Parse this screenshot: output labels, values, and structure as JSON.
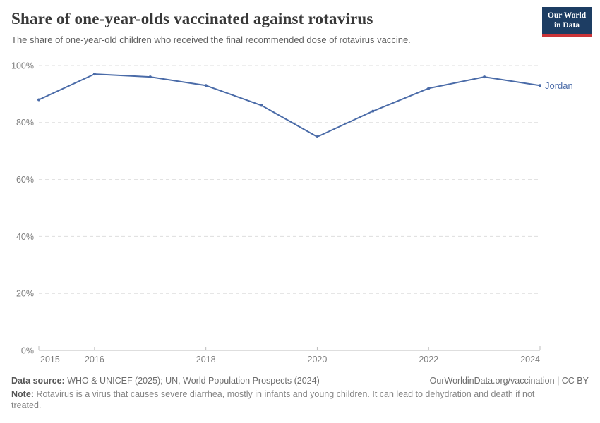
{
  "header": {
    "title": "Share of one-year-olds vaccinated against rotavirus",
    "subtitle": "The share of one-year-old children who received the final recommended dose of rotavirus vaccine.",
    "logo": {
      "line1": "Our World",
      "line2": "in Data",
      "bg_color": "#1d3d63",
      "accent_color": "#cb3438"
    }
  },
  "chart_data": {
    "type": "line",
    "title": "Share of one-year-olds vaccinated against rotavirus",
    "x": [
      2015,
      2016,
      2017,
      2018,
      2019,
      2020,
      2021,
      2022,
      2023,
      2024
    ],
    "series": [
      {
        "name": "Jordan",
        "color": "#4a6ba8",
        "values": [
          88,
          97,
          96,
          93,
          86,
          75,
          84,
          92,
          96,
          93
        ]
      }
    ],
    "xlabel": "",
    "ylabel": "",
    "ylim": [
      0,
      100
    ],
    "yticks": [
      {
        "value": 0,
        "label": "0%"
      },
      {
        "value": 20,
        "label": "20%"
      },
      {
        "value": 40,
        "label": "40%"
      },
      {
        "value": 60,
        "label": "60%"
      },
      {
        "value": 80,
        "label": "80%"
      },
      {
        "value": 100,
        "label": "100%"
      }
    ],
    "xticks": [
      {
        "value": 2015,
        "label": "2015"
      },
      {
        "value": 2016,
        "label": "2016"
      },
      {
        "value": 2018,
        "label": "2018"
      },
      {
        "value": 2020,
        "label": "2020"
      },
      {
        "value": 2022,
        "label": "2022"
      },
      {
        "value": 2024,
        "label": "2024"
      }
    ],
    "grid": "horizontal-dashed",
    "legend_position": "end-of-line-label",
    "style": {
      "grid_color": "#dedede",
      "axis_color": "#bcbcbc",
      "tick_label_color": "#7d7d7d"
    }
  },
  "footer": {
    "source_label": "Data source:",
    "source_text": "WHO & UNICEF (2025); UN, World Population Prospects (2024)",
    "rights": "OurWorldinData.org/vaccination | CC BY",
    "note_label": "Note:",
    "note_text": "Rotavirus is a virus that causes severe diarrhea, mostly in infants and young children. It can lead to dehydration and death if not treated."
  }
}
